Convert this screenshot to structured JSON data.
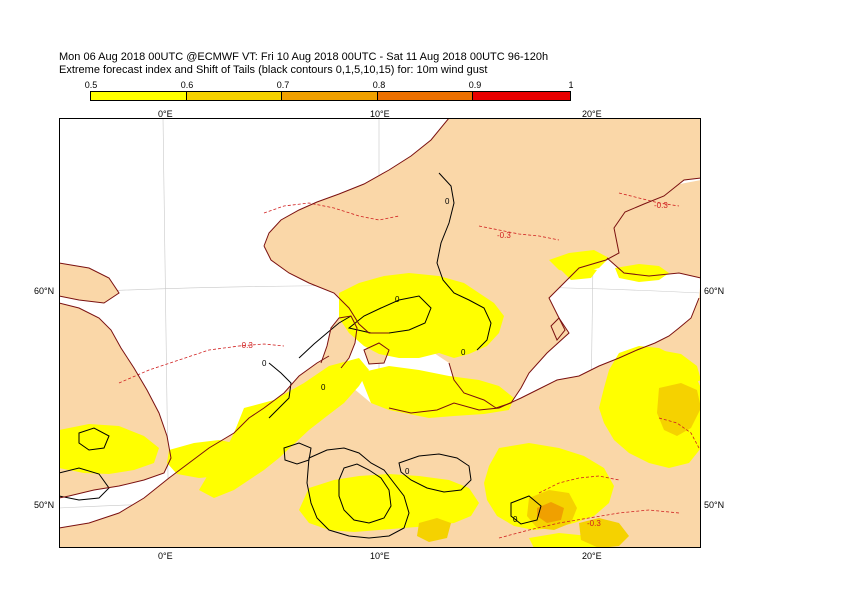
{
  "title": {
    "line1": "Mon 06 Aug 2018 00UTC @ECMWF VT: Fri 10 Aug 2018 00UTC - Sat 11 Aug 2018 00UTC  96-120h",
    "line2": "Extreme forecast index and Shift of Tails (black contours 0,1,5,10,15) for: 10m wind gust"
  },
  "colorbar": {
    "ticks": [
      "0.5",
      "0.6",
      "0.7",
      "0.8",
      "0.9",
      "1"
    ],
    "colors": [
      "#ffff00",
      "#f5d200",
      "#f0a000",
      "#ec7000",
      "#e80000"
    ]
  },
  "map": {
    "colors": {
      "sea": "#ffffff",
      "land": "#fad7a8",
      "coast": "#7a1010",
      "efi_05": "#ffff00",
      "efi_06": "#f5d200",
      "efi_07": "#f0a000",
      "sot_contour": "#000000",
      "neg_contour": "#d02020",
      "grid": "#c8c8c8"
    },
    "lon_labels_top": [
      "0°E",
      "10°E",
      "20°E"
    ],
    "lon_labels_bottom": [
      "0°E",
      "10°E",
      "20°E"
    ],
    "lat_labels_left": [
      "60°N",
      "50°N"
    ],
    "lat_labels_right": [
      "60°N",
      "50°N"
    ],
    "contour_labels": [
      "0",
      "0",
      "0",
      "0",
      "0",
      "0",
      "0"
    ],
    "neg_labels": [
      "-0.3",
      "-0.3",
      "-0.3",
      "-0.3"
    ]
  }
}
